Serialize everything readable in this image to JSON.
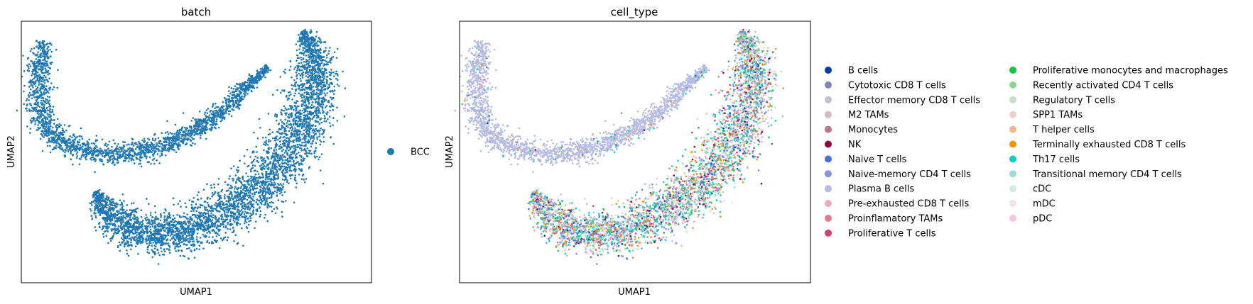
{
  "chart_data": [
    {
      "type": "scatter",
      "title": "batch",
      "xlabel": "UMAP1",
      "ylabel": "UMAP2",
      "grid": false,
      "ticks": false,
      "legend_placement": "right",
      "color_key": "batch",
      "categories": [
        {
          "name": "BCC",
          "color": "#1f77b4",
          "weight": 1
        }
      ]
    },
    {
      "type": "scatter",
      "title": "cell_type",
      "xlabel": "UMAP1",
      "ylabel": "UMAP2",
      "grid": false,
      "ticks": false,
      "legend_placement": "right",
      "color_key": "cell_type",
      "categories": [
        {
          "name": "B cells",
          "color": "#023fa5",
          "weight": 2
        },
        {
          "name": "Cytotoxic CD8 T cells",
          "color": "#7d87b9",
          "weight": 3
        },
        {
          "name": "Effector memory CD8 T cells",
          "color": "#bec1d4",
          "weight": 5
        },
        {
          "name": "M2 TAMs",
          "color": "#d6bcc0",
          "weight": 1
        },
        {
          "name": "Monocytes",
          "color": "#bb7784",
          "weight": 1
        },
        {
          "name": "NK",
          "color": "#8e063b",
          "weight": 2
        },
        {
          "name": "Naive T cells",
          "color": "#4a6fe3",
          "weight": 6
        },
        {
          "name": "Naive-memory CD4 T cells",
          "color": "#8595e1",
          "weight": 5
        },
        {
          "name": "Plasma B cells",
          "color": "#b5bbe3",
          "weight": 40
        },
        {
          "name": "Pre-exhausted CD8 T cells",
          "color": "#e6afb9",
          "weight": 3
        },
        {
          "name": "Proinflamatory TAMs",
          "color": "#e07b91",
          "weight": 3
        },
        {
          "name": "Proliferative T cells",
          "color": "#d33f6a",
          "weight": 3
        },
        {
          "name": "Proliferative monocytes and macrophages",
          "color": "#11c638",
          "weight": 2
        },
        {
          "name": "Recently activated CD4 T cells",
          "color": "#8dd593",
          "weight": 3
        },
        {
          "name": "Regulatory T cells",
          "color": "#c6dec7",
          "weight": 3
        },
        {
          "name": "SPP1 TAMs",
          "color": "#ead3c6",
          "weight": 2
        },
        {
          "name": "T helper cells",
          "color": "#f0b98d",
          "weight": 4
        },
        {
          "name": "Terminally exhausted CD8 T cells",
          "color": "#ef9708",
          "weight": 5
        },
        {
          "name": "Th17 cells",
          "color": "#0fcfc0",
          "weight": 12
        },
        {
          "name": "Transitional memory CD4 T cells",
          "color": "#9cded6",
          "weight": 4
        },
        {
          "name": "cDC",
          "color": "#d5eae7",
          "weight": 2
        },
        {
          "name": "mDC",
          "color": "#f3e1eb",
          "weight": 2
        },
        {
          "name": "pDC",
          "color": "#f6c4e1",
          "weight": 2
        }
      ]
    }
  ]
}
